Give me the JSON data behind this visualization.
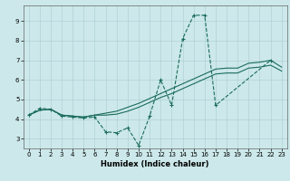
{
  "xlabel": "Humidex (Indice chaleur)",
  "xlim": [
    -0.5,
    23.5
  ],
  "ylim": [
    2.5,
    9.8
  ],
  "xticks": [
    0,
    1,
    2,
    3,
    4,
    5,
    6,
    7,
    8,
    9,
    10,
    11,
    12,
    13,
    14,
    15,
    16,
    17,
    18,
    19,
    20,
    21,
    22,
    23
  ],
  "yticks": [
    3,
    4,
    5,
    6,
    7,
    8,
    9
  ],
  "background_color": "#cce8ea",
  "grid_color": "#aacdd4",
  "line_color": "#1a6b5a",
  "zigzag_x": [
    0,
    1,
    2,
    3,
    4,
    5,
    6,
    7,
    8,
    9,
    10,
    11,
    12,
    13,
    14,
    15,
    16,
    17,
    22
  ],
  "zigzag_y": [
    4.2,
    4.55,
    4.5,
    4.15,
    4.1,
    4.05,
    4.1,
    3.35,
    3.3,
    3.55,
    2.65,
    4.15,
    6.0,
    4.7,
    8.1,
    9.3,
    9.3,
    4.7,
    7.0
  ],
  "line_upper_x": [
    0,
    1,
    2,
    3,
    4,
    5,
    6,
    7,
    8,
    9,
    10,
    11,
    12,
    13,
    14,
    15,
    16,
    17,
    18,
    19,
    20,
    21,
    22,
    23
  ],
  "line_upper_y": [
    4.2,
    4.45,
    4.5,
    4.2,
    4.15,
    4.1,
    4.2,
    4.3,
    4.4,
    4.6,
    4.8,
    5.05,
    5.3,
    5.55,
    5.8,
    6.05,
    6.3,
    6.55,
    6.6,
    6.6,
    6.85,
    6.9,
    7.0,
    6.65
  ],
  "line_lower_x": [
    0,
    1,
    2,
    3,
    4,
    5,
    6,
    7,
    8,
    9,
    10,
    11,
    12,
    13,
    14,
    15,
    16,
    17,
    18,
    19,
    20,
    21,
    22,
    23
  ],
  "line_lower_y": [
    4.2,
    4.45,
    4.5,
    4.2,
    4.15,
    4.1,
    4.2,
    4.2,
    4.25,
    4.4,
    4.6,
    4.85,
    5.1,
    5.3,
    5.55,
    5.8,
    6.05,
    6.3,
    6.35,
    6.35,
    6.6,
    6.65,
    6.75,
    6.45
  ]
}
